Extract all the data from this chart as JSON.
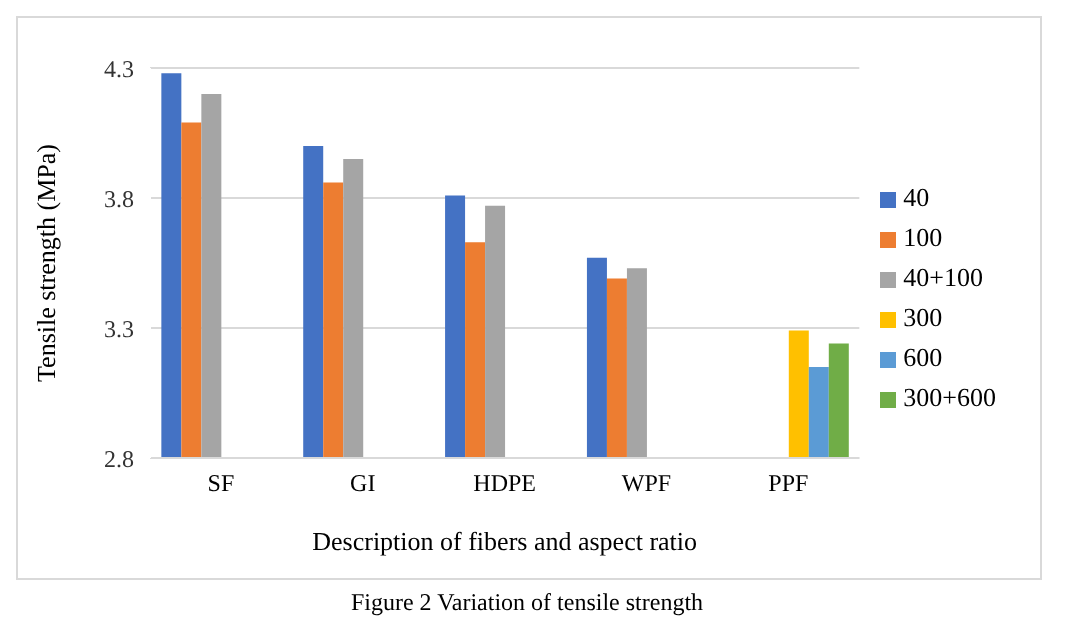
{
  "chart_data": {
    "type": "bar",
    "categories": [
      "SF",
      "GI",
      "HDPE",
      "WPF",
      "PPF"
    ],
    "series": [
      {
        "name": "40",
        "color": "#4472c4",
        "values": [
          4.28,
          4.0,
          3.81,
          3.57,
          null
        ]
      },
      {
        "name": "100",
        "color": "#ed7d31",
        "values": [
          4.09,
          3.86,
          3.63,
          3.49,
          null
        ]
      },
      {
        "name": "40+100",
        "color": "#a5a5a5",
        "values": [
          4.2,
          3.95,
          3.77,
          3.53,
          null
        ]
      },
      {
        "name": "300",
        "color": "#ffc000",
        "values": [
          null,
          null,
          null,
          null,
          3.29
        ]
      },
      {
        "name": "600",
        "color": "#5b9bd5",
        "values": [
          null,
          null,
          null,
          null,
          3.15
        ]
      },
      {
        "name": "300+600",
        "color": "#70ad47",
        "values": [
          null,
          null,
          null,
          null,
          3.24
        ]
      }
    ],
    "xlabel": "Description of fibers and aspect ratio",
    "ylabel": "Tensile strength (MPa)",
    "ylim": [
      2.8,
      4.3
    ],
    "yticks": [
      2.8,
      3.3,
      3.8,
      4.3
    ],
    "grid": "y",
    "legend": "right",
    "annotations": [
      "Figure 2 Variation of tensile strength"
    ]
  }
}
